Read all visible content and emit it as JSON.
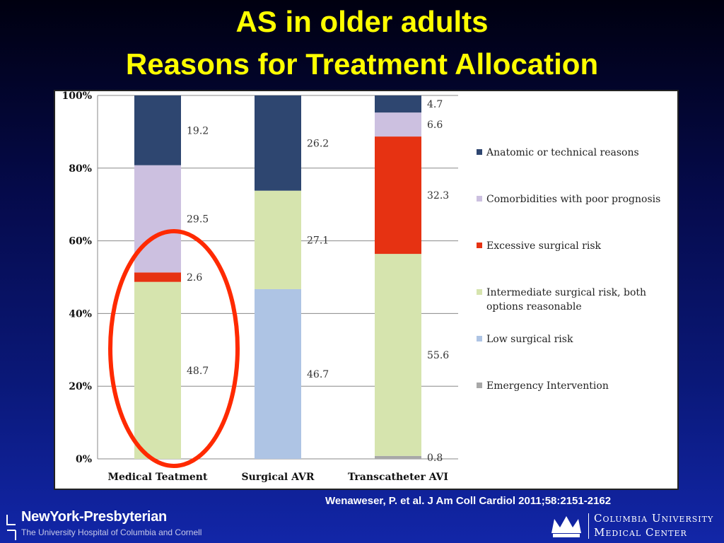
{
  "slide": {
    "title_line1": "AS in older adults",
    "title_line2": "Reasons for Treatment Allocation",
    "citation": "Wenaweser, P. et al. J Am Coll Cardiol 2011;58:2151-2162",
    "highlight_color": "#ff2a00"
  },
  "logos": {
    "nyp_name": "NewYork-Presbyterian",
    "nyp_subtitle": "The University Hospital of Columbia and Cornell",
    "cu_line1": "Columbia University",
    "cu_line2": "Medical Center"
  },
  "chart_data": {
    "type": "bar",
    "stacked": true,
    "categories": [
      "Medical Teatment",
      "Surgical AVR",
      "Transcatheter AVI"
    ],
    "ylim": [
      0,
      100
    ],
    "yticks": [
      "0%",
      "20%",
      "40%",
      "60%",
      "80%",
      "100%"
    ],
    "grid": true,
    "legend_position": "right",
    "series": [
      {
        "name": "Emergency Intervention",
        "color": "#a8a8a8",
        "values": [
          0,
          0,
          0.8
        ],
        "labels": [
          "",
          "",
          "0.8"
        ]
      },
      {
        "name": "Low surgical risk",
        "color": "#aec4e4",
        "values": [
          0,
          46.7,
          0
        ],
        "labels": [
          "",
          "46.7",
          ""
        ]
      },
      {
        "name": "Intermediate surgical risk, both options reasonable",
        "color": "#d6e4ae",
        "values": [
          48.7,
          27.1,
          55.6
        ],
        "labels": [
          "48.7",
          "27.1",
          "55.6"
        ]
      },
      {
        "name": "Excessive surgical risk",
        "color": "#e63212",
        "values": [
          2.6,
          0,
          32.3
        ],
        "labels": [
          "2.6",
          "",
          "32.3"
        ]
      },
      {
        "name": "Comorbidities with poor prognosis",
        "color": "#ccc0e0",
        "values": [
          29.5,
          0,
          6.6
        ],
        "labels": [
          "29.5",
          "",
          "6.6"
        ]
      },
      {
        "name": "Anatomic or technical reasons",
        "color": "#2e4670",
        "values": [
          19.2,
          26.2,
          4.7
        ],
        "labels": [
          "19.2",
          "26.2",
          "4.7"
        ]
      }
    ],
    "legend_order": [
      "Anatomic or technical reasons",
      "Comorbidities with poor prognosis",
      "Excessive surgical risk",
      "Intermediate surgical risk, both options reasonable",
      "Low surgical risk",
      "Emergency Intervention"
    ],
    "legend_lines": [
      [
        "Anatomic or technical reasons"
      ],
      [
        "Comorbidities with poor prognosis"
      ],
      [
        "Excessive surgical risk"
      ],
      [
        "Intermediate surgical risk, both",
        "options reasonable"
      ],
      [
        "Low surgical risk"
      ],
      [
        "Emergency Intervention"
      ]
    ]
  }
}
